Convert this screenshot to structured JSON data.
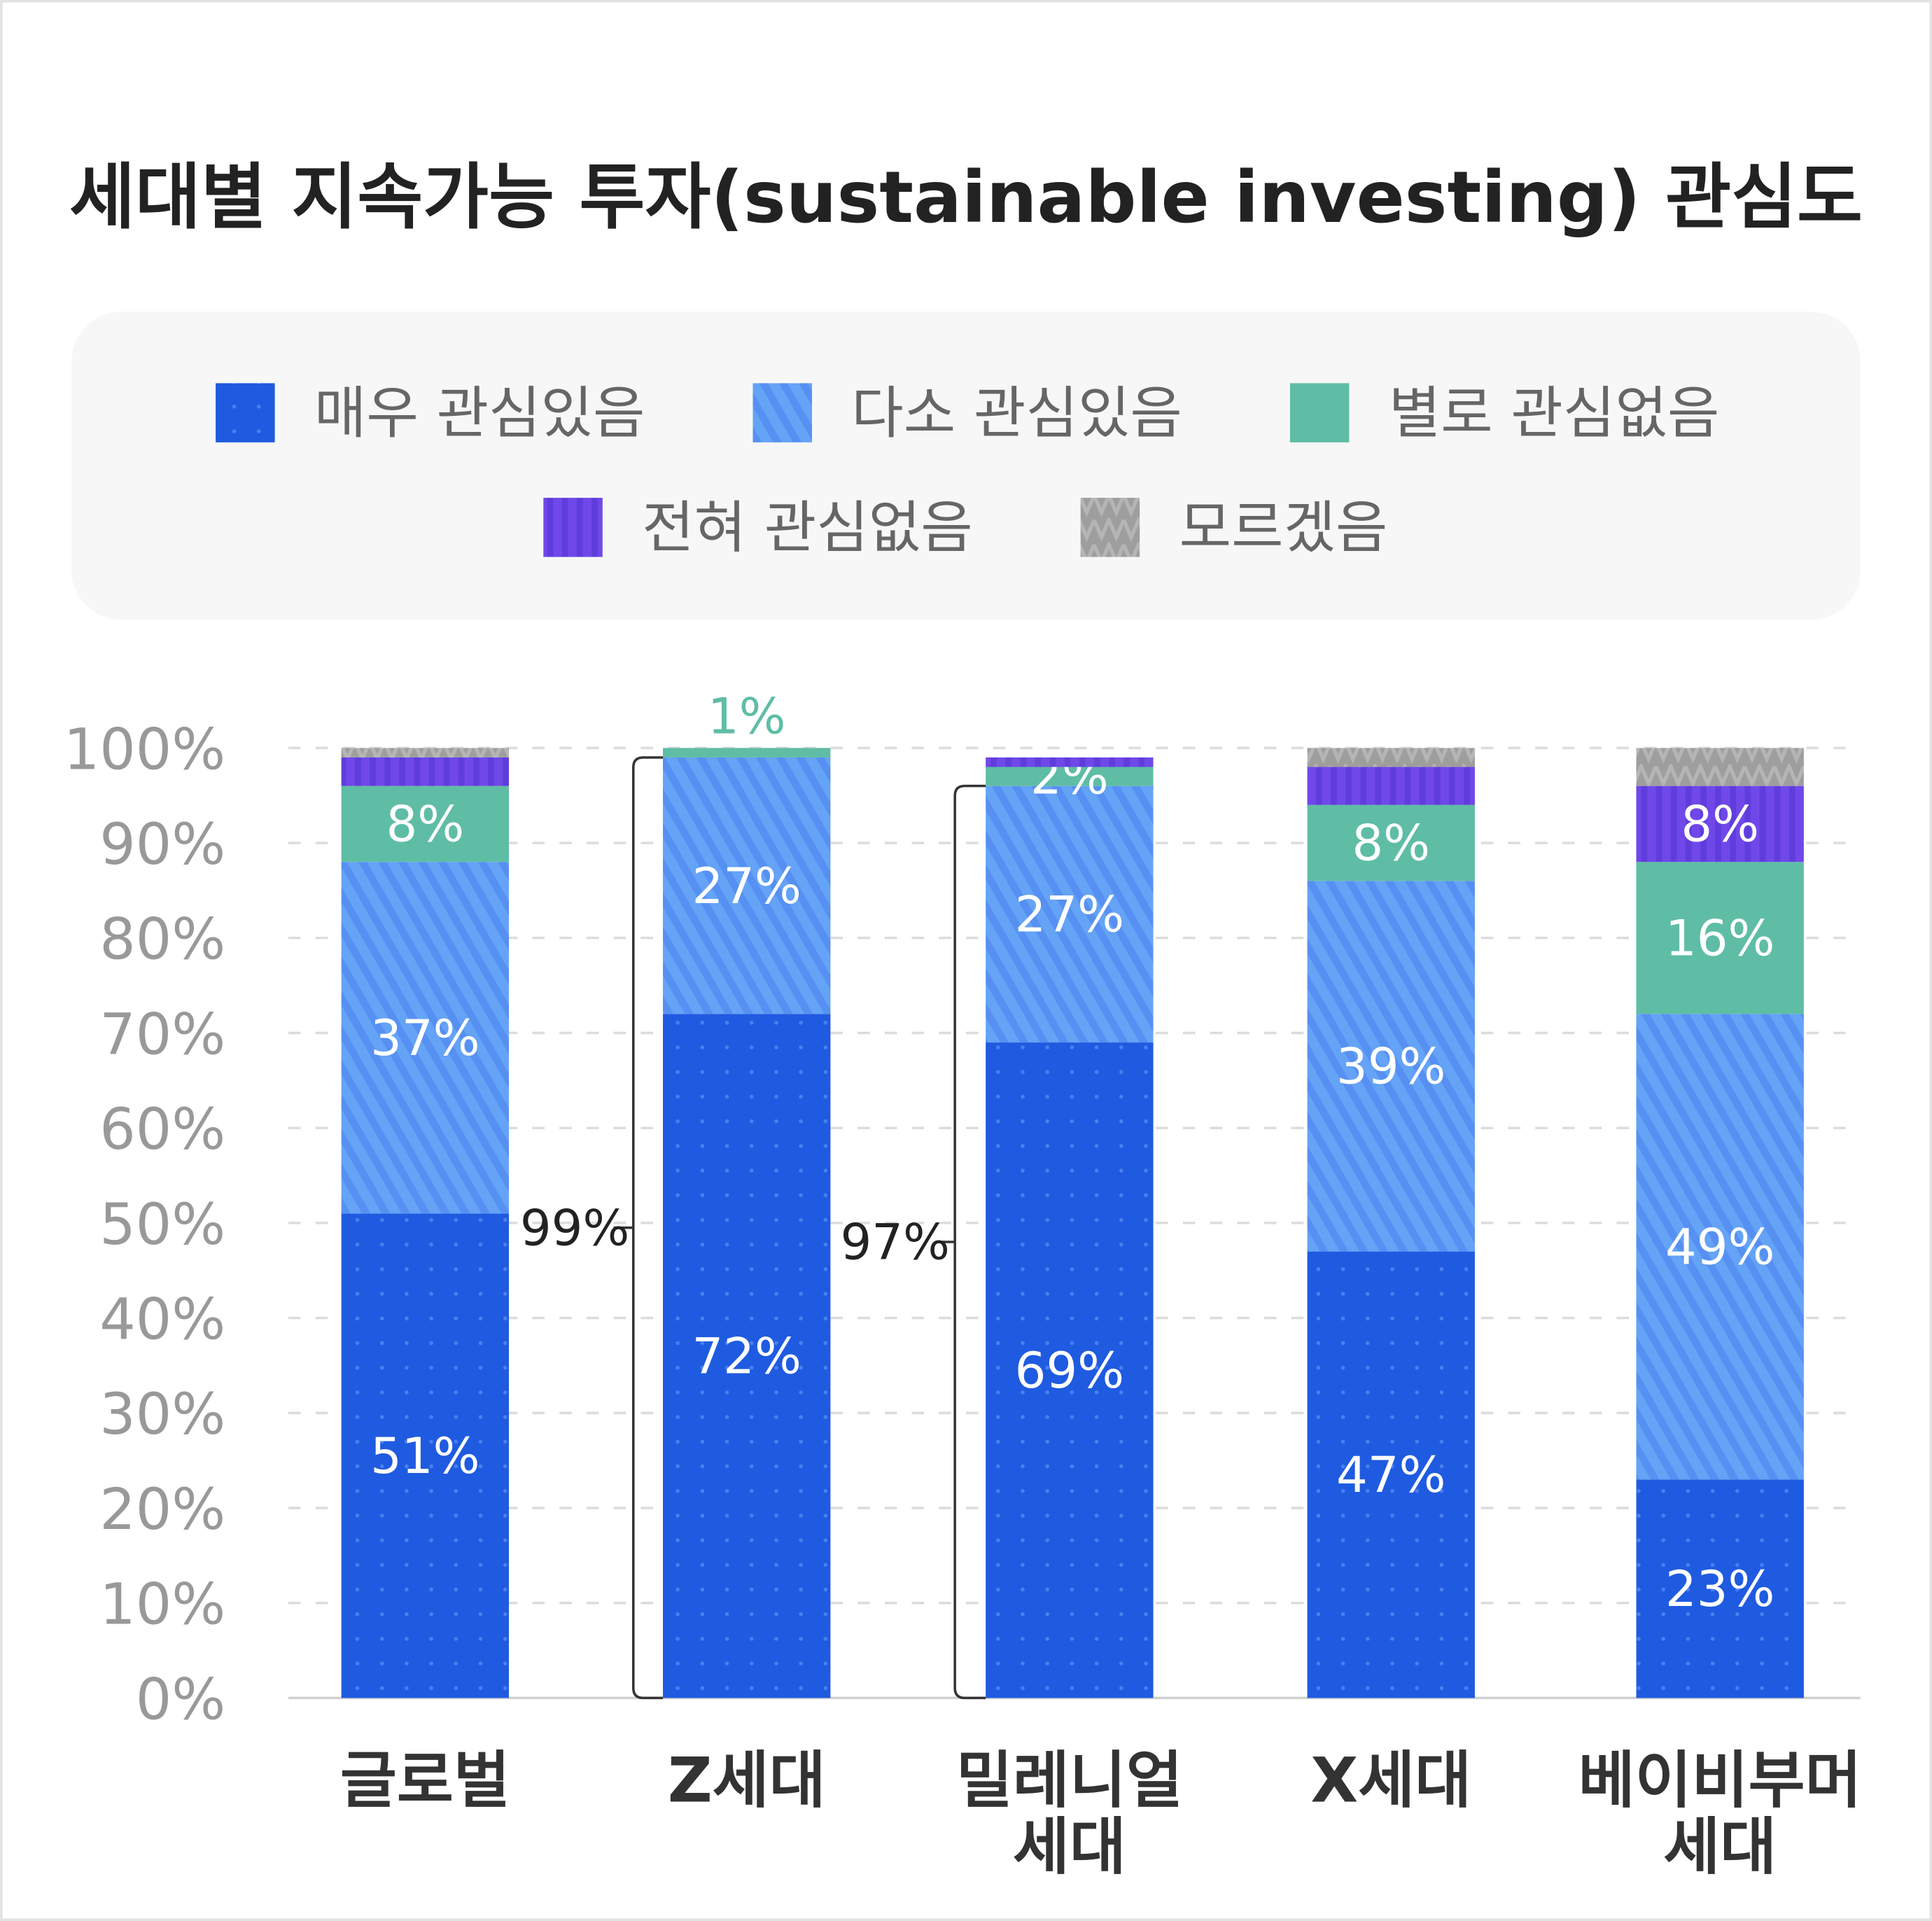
{
  "chart_data": {
    "type": "bar",
    "stacked": true,
    "title": "세대별 지속가능 투자(sustainable investing) 관심도",
    "categories": [
      [
        "글로벌"
      ],
      [
        "Z세대"
      ],
      [
        "밀레니얼",
        "세대"
      ],
      [
        "X세대"
      ],
      [
        "베이비부머",
        "세대"
      ]
    ],
    "ylim": [
      0,
      100
    ],
    "yticks": [
      "0%",
      "10%",
      "20%",
      "30%",
      "40%",
      "50%",
      "60%",
      "70%",
      "80%",
      "90%",
      "100%"
    ],
    "grid": true,
    "legend_placement": "top",
    "series": [
      {
        "name": "매우 관심있음",
        "color": "#1f5be0",
        "pattern": "dots",
        "values": [
          51,
          72,
          69,
          47,
          23
        ],
        "labels": [
          "51%",
          "72%",
          "69%",
          "47%",
          "23%"
        ]
      },
      {
        "name": "다소 관심있음",
        "color": "#5b97f5",
        "pattern": "diagonal-stripes",
        "values": [
          37,
          27,
          27,
          39,
          49
        ],
        "labels": [
          "37%",
          "27%",
          "27%",
          "39%",
          "49%"
        ]
      },
      {
        "name": "별로 관심없음",
        "color": "#5fbda5",
        "pattern": "solid",
        "values": [
          8,
          1,
          2,
          8,
          16
        ],
        "labels": [
          "8%",
          "1%",
          "2%",
          "8%",
          "16%"
        ]
      },
      {
        "name": "전혀 관심없음",
        "color": "#6a44e6",
        "pattern": "vertical-stripes",
        "values": [
          3,
          0,
          1,
          4,
          8
        ],
        "labels": [
          null,
          null,
          null,
          null,
          "8%"
        ]
      },
      {
        "name": "모르겠음",
        "color": "#9e9e9e",
        "pattern": "zigzag",
        "values": [
          1,
          0,
          0,
          2,
          4
        ],
        "labels": [
          null,
          null,
          null,
          null,
          null
        ]
      }
    ],
    "annotations": [
      {
        "category": "Z세대",
        "text": "99%",
        "type": "bracket",
        "span": [
          "매우 관심있음",
          "다소 관심있음"
        ]
      },
      {
        "category": "밀레니얼 세대",
        "text": "97%",
        "type": "bracket",
        "span": [
          "매우 관심있음",
          "다소 관심있음"
        ]
      }
    ]
  }
}
